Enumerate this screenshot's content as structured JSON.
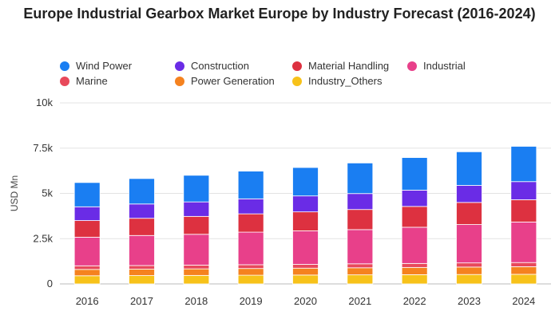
{
  "chart_data": {
    "type": "bar",
    "stacked": true,
    "title": "Europe Industrial Gearbox Market Europe by Industry Forecast (2016-2024)",
    "xlabel": "",
    "ylabel": "USD Mn",
    "ylim": [
      0,
      10000
    ],
    "yticks": [
      0,
      2500,
      5000,
      7500,
      10000
    ],
    "ytick_labels": [
      "0",
      "2.5k",
      "5k",
      "7.5k",
      "10k"
    ],
    "grid": true,
    "legend_position": "top",
    "categories": [
      "2016",
      "2017",
      "2018",
      "2019",
      "2020",
      "2021",
      "2022",
      "2023",
      "2024"
    ],
    "series": [
      {
        "name": "Industry_Others",
        "color": "#f7c21a",
        "values": [
          450,
          460,
          470,
          480,
          490,
          500,
          510,
          520,
          530
        ]
      },
      {
        "name": "Power Generation",
        "color": "#f5821f",
        "values": [
          350,
          355,
          360,
          370,
          380,
          390,
          400,
          410,
          420
        ]
      },
      {
        "name": "Marine",
        "color": "#e8495b",
        "values": [
          200,
          200,
          210,
          210,
          210,
          220,
          220,
          230,
          230
        ]
      },
      {
        "name": "Industrial",
        "color": "#e8408a",
        "values": [
          1580,
          1660,
          1700,
          1800,
          1850,
          1890,
          2000,
          2120,
          2240
        ]
      },
      {
        "name": "Material Handling",
        "color": "#dd3140",
        "values": [
          920,
          950,
          990,
          1010,
          1050,
          1110,
          1150,
          1220,
          1230
        ]
      },
      {
        "name": "Construction",
        "color": "#6a2ce6",
        "values": [
          760,
          790,
          800,
          830,
          880,
          880,
          900,
          940,
          1000
        ]
      },
      {
        "name": "Wind Power",
        "color": "#1a7ef2",
        "values": [
          1340,
          1405,
          1470,
          1530,
          1570,
          1690,
          1800,
          1860,
          1950
        ]
      }
    ],
    "legend": [
      {
        "label": "Wind Power",
        "color": "#1a7ef2"
      },
      {
        "label": "Construction",
        "color": "#6a2ce6"
      },
      {
        "label": "Material Handling",
        "color": "#dd3140"
      },
      {
        "label": "Industrial",
        "color": "#e8408a"
      },
      {
        "label": "Marine",
        "color": "#e8495b"
      },
      {
        "label": "Power Generation",
        "color": "#f5821f"
      },
      {
        "label": "Industry_Others",
        "color": "#f7c21a"
      }
    ]
  }
}
